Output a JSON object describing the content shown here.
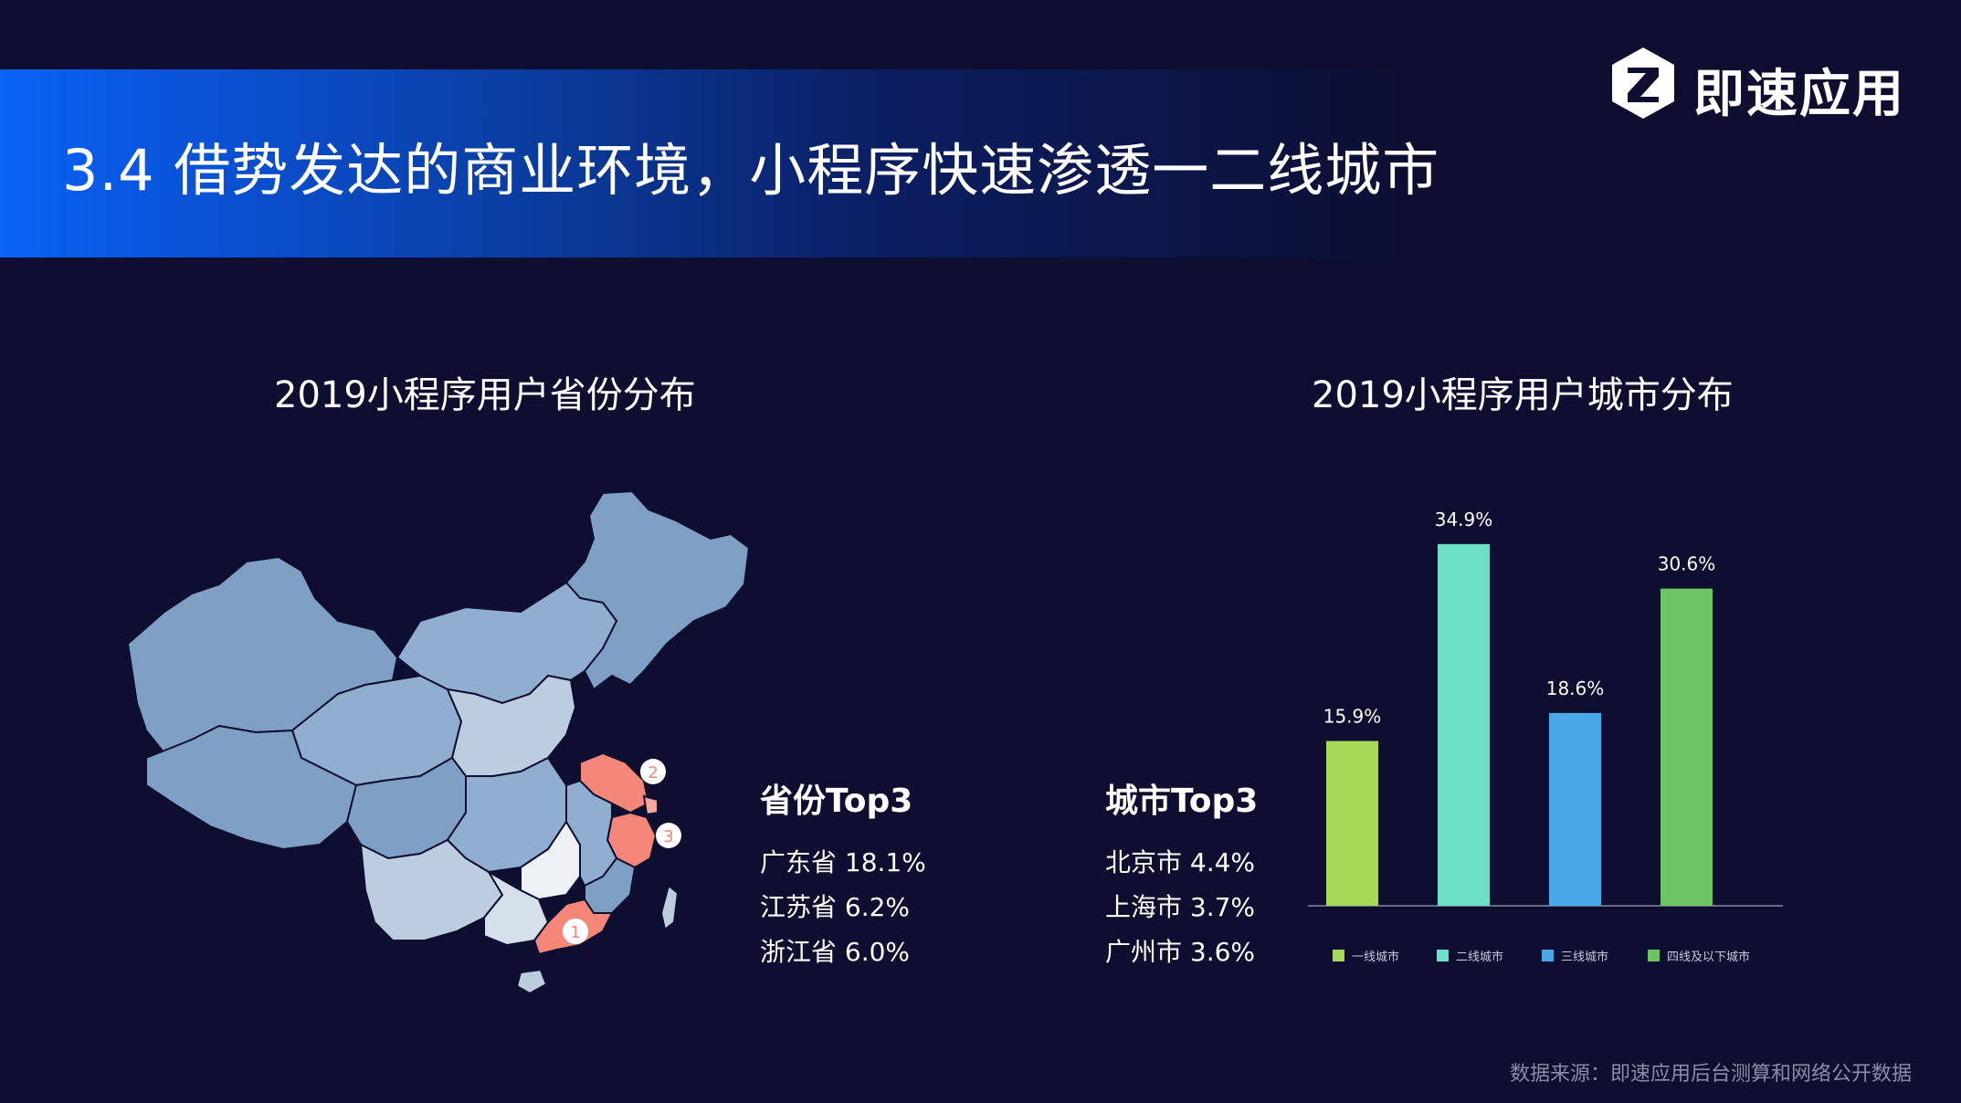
{
  "header": {
    "title": "3.4 借势发达的商业环境，小程序快速渗透一二线城市",
    "logo_text": "即速应用",
    "logo_icon": "hexagon-z-logo-icon"
  },
  "map_section": {
    "title": "2019小程序用户省份分布",
    "markers": [
      "1",
      "2",
      "3"
    ],
    "colors": {
      "base": "#7fa0c4",
      "light": "#bccde0",
      "highlight": "#f4877a"
    }
  },
  "province_top3": {
    "heading": "省份Top3",
    "items": [
      "广东省 18.1%",
      "江苏省 6.2%",
      "浙江省 6.0%"
    ]
  },
  "city_top3": {
    "heading": "城市Top3",
    "items": [
      "北京市 4.4%",
      "上海市 3.7%",
      "广州市 3.6%"
    ]
  },
  "chart_data": {
    "type": "bar",
    "title": "2019小程序用户城市分布",
    "categories": [
      "一线城市",
      "二线城市",
      "三线城市",
      "四线及以下城市"
    ],
    "values": [
      15.9,
      34.9,
      18.6,
      30.6
    ],
    "data_labels": [
      "15.9%",
      "34.9%",
      "18.6%",
      "30.6%"
    ],
    "colors": [
      "#a6d957",
      "#6ee0c5",
      "#4aa8e8",
      "#6cc463"
    ],
    "ylim": [
      0,
      37
    ],
    "grid": false,
    "legend_position": "bottom"
  },
  "footer": {
    "source": "数据来源：即速应用后台测算和网络公开数据"
  }
}
